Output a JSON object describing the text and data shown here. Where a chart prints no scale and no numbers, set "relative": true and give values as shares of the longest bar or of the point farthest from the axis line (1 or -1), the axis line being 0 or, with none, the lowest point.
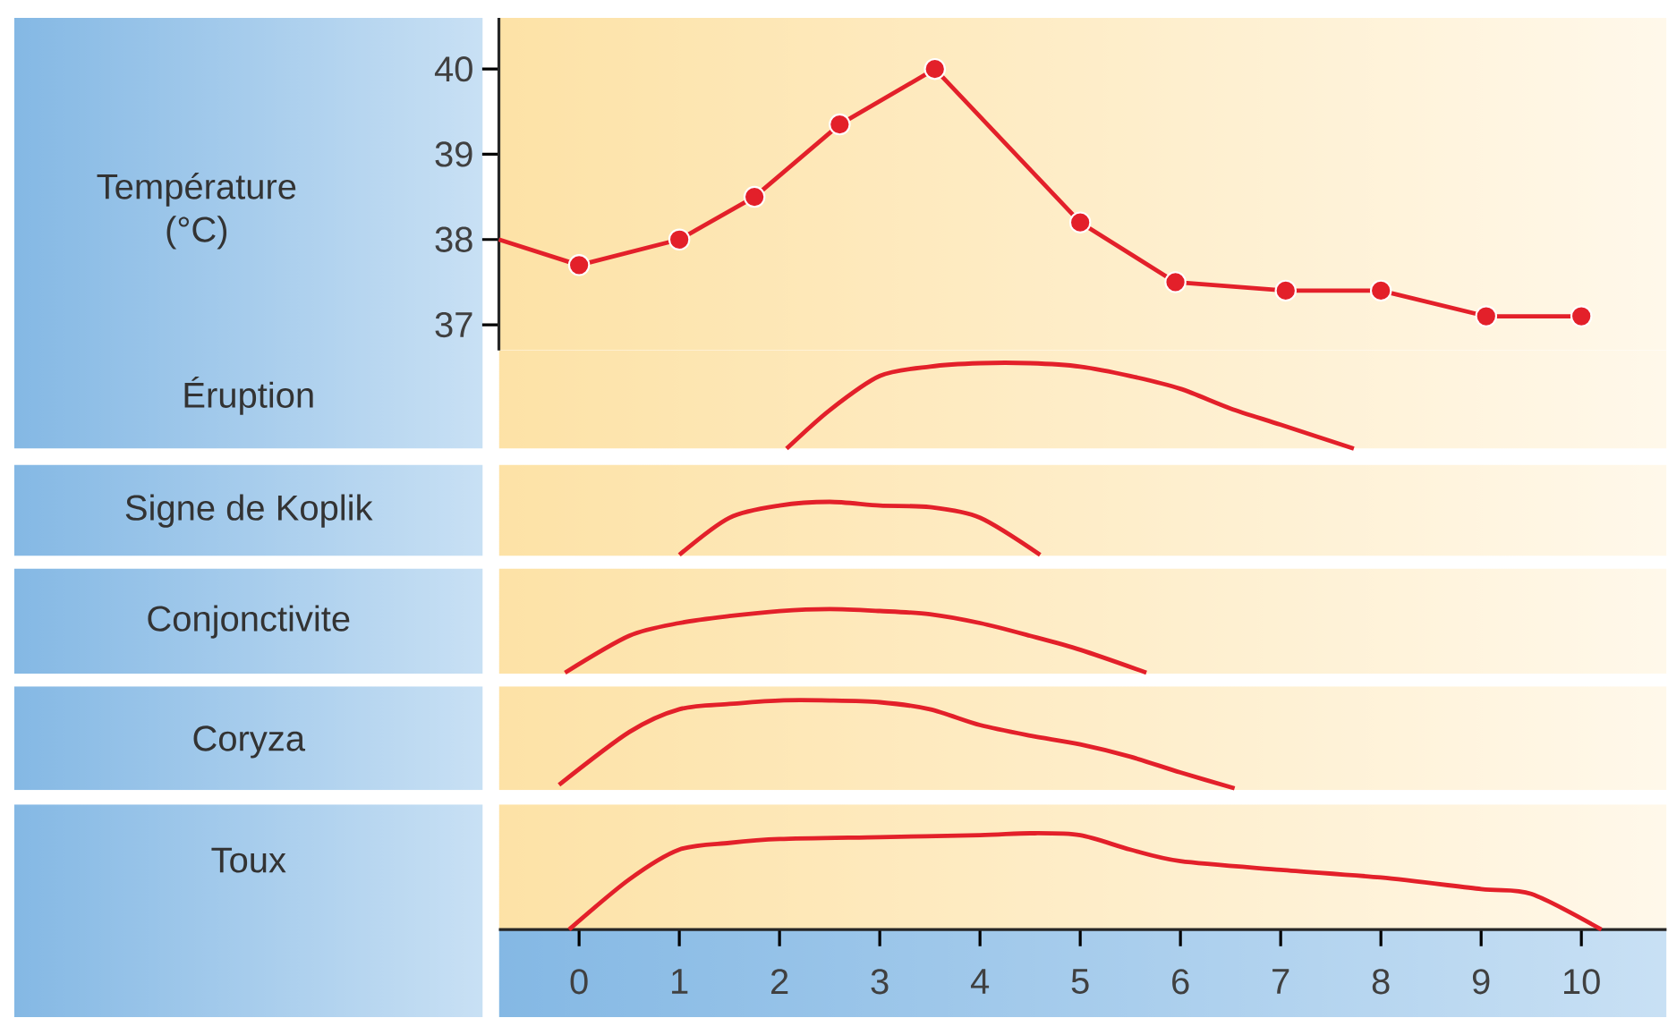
{
  "chart_data": [
    {
      "type": "line",
      "ylabel": "Température (°C)",
      "xlim": [
        -0.8,
        10.85
      ],
      "ylim": [
        36.7,
        40.6
      ],
      "yticks": [
        37,
        38,
        39,
        40
      ],
      "tick_labels": "y",
      "series": [
        {
          "color": "#e3202a",
          "x": [
            -0.8,
            0
          ],
          "values": [
            38.0,
            37.7
          ]
        },
        {
          "color": "#e3202a",
          "marker": "circle",
          "x": [
            0,
            1,
            1.75,
            2.6,
            3.55,
            5,
            5.95,
            7.05,
            8,
            9.05,
            10
          ],
          "values": [
            37.7,
            38.0,
            38.5,
            39.35,
            40.0,
            38.2,
            37.5,
            37.4,
            37.4,
            37.1,
            37.1
          ]
        }
      ]
    },
    {
      "type": "line",
      "ylabel": "Éruption",
      "relative": true,
      "xlim": [
        -0.8,
        10.85
      ],
      "tick_labels": false,
      "color": "#e3202a",
      "x": [
        2.07,
        2.5,
        3,
        3.5,
        4,
        4.5,
        5,
        5.5,
        6,
        6.5,
        7,
        7.73
      ],
      "values": [
        0,
        0.45,
        0.85,
        0.96,
        1,
        1,
        0.96,
        0.85,
        0.7,
        0.47,
        0.28,
        0
      ]
    },
    {
      "type": "line",
      "ylabel": "Signe de Koplik",
      "relative": true,
      "xlim": [
        -0.8,
        10.85
      ],
      "tick_labels": false,
      "color": "#e3202a",
      "x": [
        1.0,
        1.5,
        2,
        2.5,
        3,
        3.5,
        4,
        4.6
      ],
      "values": [
        0,
        0.7,
        0.93,
        1,
        0.93,
        0.9,
        0.7,
        0
      ]
    },
    {
      "type": "line",
      "ylabel": "Conjonctivite",
      "relative": true,
      "xlim": [
        -0.8,
        10.85
      ],
      "tick_labels": false,
      "color": "#e3202a",
      "x": [
        -0.14,
        0.5,
        1,
        1.5,
        2,
        2.5,
        3,
        3.5,
        4,
        4.5,
        5,
        5.66
      ],
      "values": [
        0,
        0.58,
        0.78,
        0.89,
        0.97,
        1,
        0.97,
        0.92,
        0.78,
        0.58,
        0.36,
        0
      ]
    },
    {
      "type": "line",
      "ylabel": "Coryza",
      "relative": true,
      "xlim": [
        -0.8,
        10.85
      ],
      "tick_labels": false,
      "color": "#e3202a",
      "x": [
        -0.2,
        0.5,
        1,
        1.5,
        2,
        2.5,
        3,
        3.5,
        4,
        4.5,
        5,
        5.5,
        6,
        6.54
      ],
      "values": [
        0.04,
        0.64,
        0.9,
        0.96,
        1,
        1,
        0.98,
        0.9,
        0.72,
        0.6,
        0.5,
        0.36,
        0.18,
        0
      ]
    },
    {
      "type": "line",
      "ylabel": "Toux",
      "relative": true,
      "xlim": [
        -0.8,
        10.85
      ],
      "xticks": [
        0,
        1,
        2,
        3,
        4,
        5,
        6,
        7,
        8,
        9,
        10
      ],
      "tick_labels": "x",
      "color": "#e3202a",
      "x": [
        -0.1,
        0.5,
        1,
        1.5,
        2,
        3,
        4,
        4.5,
        5,
        5.5,
        6,
        7,
        8,
        9,
        9.5,
        10.2
      ],
      "values": [
        0,
        0.52,
        0.83,
        0.9,
        0.94,
        0.96,
        0.98,
        1,
        0.98,
        0.83,
        0.71,
        0.62,
        0.54,
        0.42,
        0.37,
        0
      ]
    }
  ]
}
